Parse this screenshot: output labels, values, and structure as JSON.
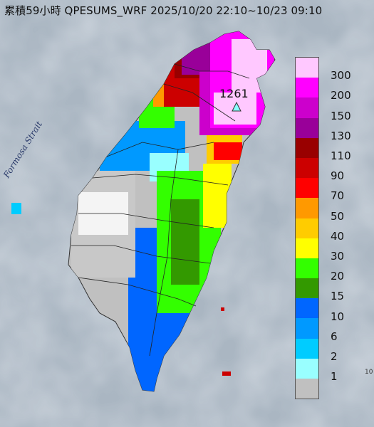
{
  "title": "累積59小時 QPESUMS_WRF 2025/10/20 22:10~10/23 09:10",
  "strait_label": "Formosa Strait",
  "max_value_label": "1261",
  "max_marker_icon": "triangle-icon",
  "edge_text": "10",
  "legend": {
    "levels": [
      {
        "label": "300",
        "color": "#ffc8ff"
      },
      {
        "label": "200",
        "color": "#ff00ff"
      },
      {
        "label": "150",
        "color": "#cc00cc"
      },
      {
        "label": "130",
        "color": "#990099"
      },
      {
        "label": "110",
        "color": "#990000"
      },
      {
        "label": "90",
        "color": "#cc0000"
      },
      {
        "label": "70",
        "color": "#ff0000"
      },
      {
        "label": "50",
        "color": "#ff9900"
      },
      {
        "label": "40",
        "color": "#ffcc00"
      },
      {
        "label": "30",
        "color": "#ffff00"
      },
      {
        "label": "20",
        "color": "#33ff00"
      },
      {
        "label": "15",
        "color": "#339900"
      },
      {
        "label": "10",
        "color": "#0066ff"
      },
      {
        "label": "6",
        "color": "#0099ff"
      },
      {
        "label": "2",
        "color": "#00ccff"
      },
      {
        "label": "1",
        "color": "#99ffff"
      },
      {
        "label": "",
        "color": "#c0c0c0"
      }
    ]
  }
}
